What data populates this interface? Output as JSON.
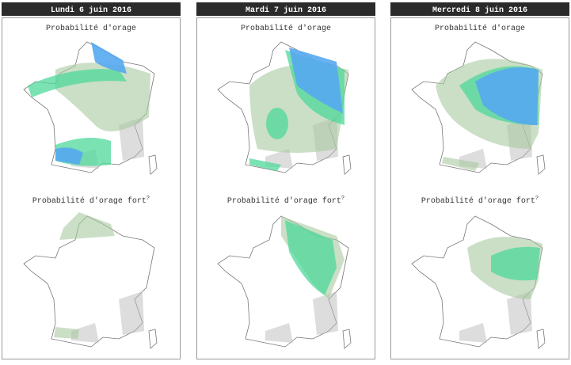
{
  "columns": [
    {
      "header": "Lundi 6 juin 2016",
      "panels": [
        {
          "title": "Probabilité d'orage"
        },
        {
          "title": "Probabilité d'orage fort",
          "note": "?"
        }
      ]
    },
    {
      "header": "Mardi 7 juin 2016",
      "panels": [
        {
          "title": "Probabilité d'orage"
        },
        {
          "title": "Probabilité d'orage fort",
          "note": "?"
        }
      ]
    },
    {
      "header": "Mercredi 8 juin 2016",
      "panels": [
        {
          "title": "Probabilité d'orage"
        },
        {
          "title": "Probabilité d'orage fort",
          "note": "?"
        }
      ]
    }
  ]
}
